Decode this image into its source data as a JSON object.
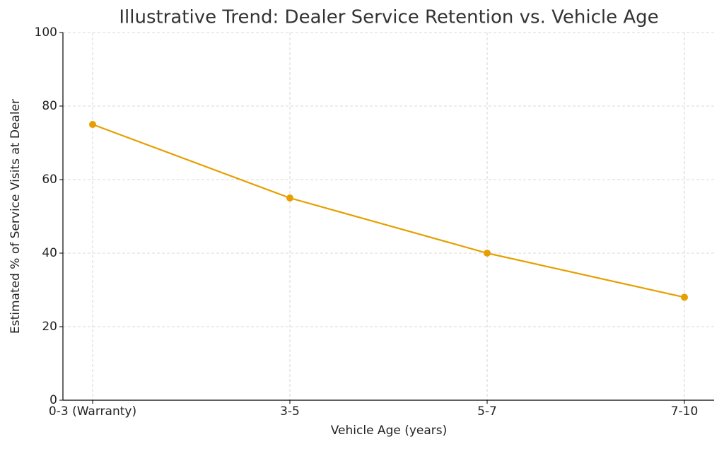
{
  "chart_data": {
    "type": "line",
    "title": "Illustrative Trend: Dealer Service Retention vs. Vehicle Age",
    "x_label": "Vehicle Age (years)",
    "y_label": "Estimated % of Service Visits at Dealer",
    "categories": [
      "0-3 (Warranty)",
      "3-5",
      "5-7",
      "7-10"
    ],
    "values": [
      75,
      55,
      40,
      28
    ],
    "color": "#e69f00",
    "ylim": [
      0,
      100
    ],
    "yticks": [
      0,
      20,
      40,
      60,
      80,
      100
    ],
    "grid": true,
    "markers": true
  }
}
